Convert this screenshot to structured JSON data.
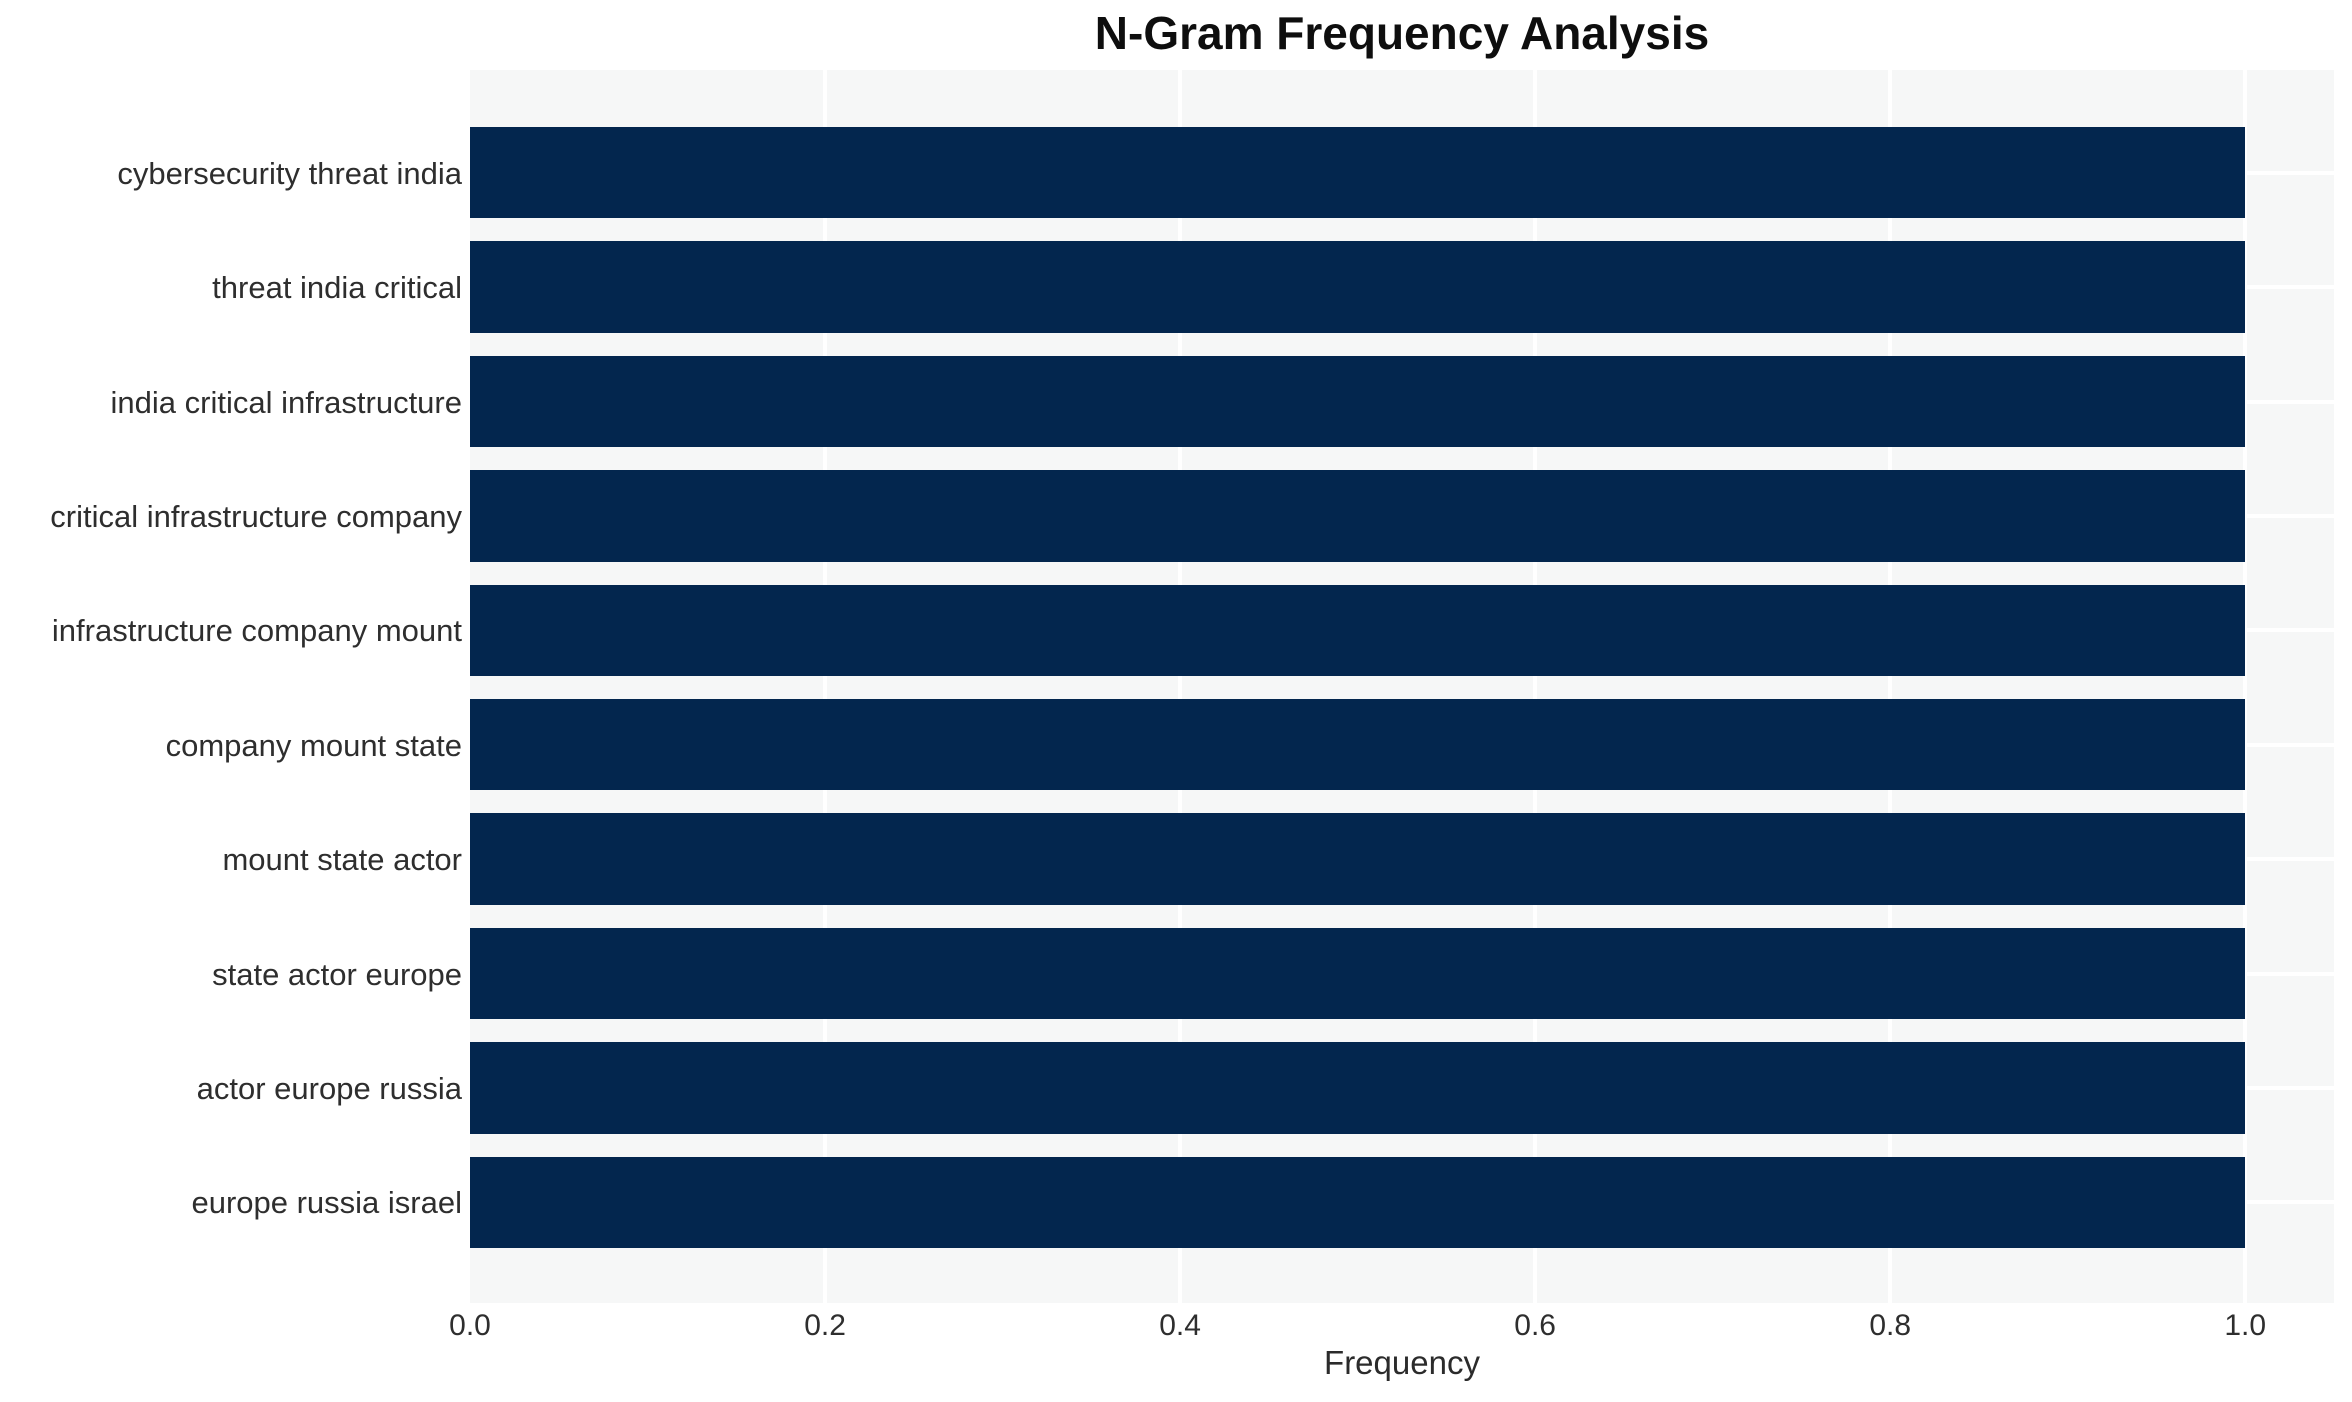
{
  "chart_data": {
    "type": "bar",
    "orientation": "horizontal",
    "title": "N-Gram Frequency Analysis",
    "xlabel": "Frequency",
    "ylabel": "",
    "categories": [
      "cybersecurity threat india",
      "threat india critical",
      "india critical infrastructure",
      "critical infrastructure company",
      "infrastructure company mount",
      "company mount state",
      "mount state actor",
      "state actor europe",
      "actor europe russia",
      "europe russia israel"
    ],
    "values": [
      1.0,
      1.0,
      1.0,
      1.0,
      1.0,
      1.0,
      1.0,
      1.0,
      1.0,
      1.0
    ],
    "xticks": [
      0.0,
      0.2,
      0.4,
      0.6,
      0.8,
      1.0
    ],
    "xtick_labels": [
      "0.0",
      "0.2",
      "0.4",
      "0.6",
      "0.8",
      "1.0"
    ],
    "xlim": [
      0,
      1.05
    ],
    "grid": true,
    "legend": false
  },
  "colors": {
    "bar": "#03264e",
    "plot_bg": "#f6f7f7",
    "grid": "#ffffff",
    "title_text": "#0e0e0e",
    "label_text": "#2e2e2e",
    "page_bg": "#ffffff"
  }
}
